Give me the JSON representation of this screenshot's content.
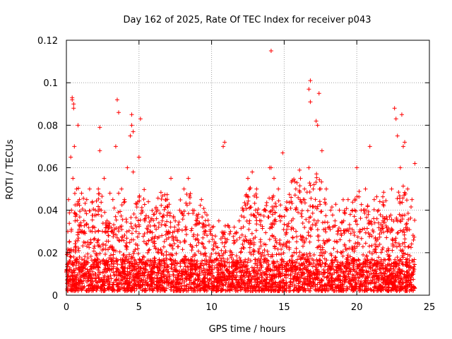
{
  "chart_data": {
    "type": "scatter",
    "title": "Day 162 of 2025, Rate Of TEC Index for receiver p043",
    "xlabel": "GPS time / hours",
    "ylabel": "ROTI / TECUs",
    "xlim": [
      0,
      25
    ],
    "ylim": [
      0,
      0.12
    ],
    "x_ticks": [
      0,
      5,
      10,
      15,
      20,
      25
    ],
    "y_ticks": [
      0,
      0.02,
      0.04,
      0.06,
      0.08,
      0.1,
      0.12
    ],
    "x_tick_labels": [
      "0",
      "5",
      "10",
      "15",
      "20",
      "25"
    ],
    "y_tick_labels": [
      "0",
      "0.02",
      "0.04",
      "0.06",
      "0.08",
      "0.1",
      "0.12"
    ],
    "grid": true,
    "marker": "plus",
    "series_color": "#ff0000",
    "x": [
      0.05,
      0.1,
      0.15,
      0.2,
      0.3,
      0.35,
      0.4,
      0.45,
      0.5,
      0.55,
      0.6,
      0.7,
      0.8,
      0.9,
      1.0,
      1.2,
      1.4,
      1.6,
      1.8,
      2.0,
      2.2,
      2.3,
      2.4,
      2.6,
      2.8,
      3.0,
      3.2,
      3.4,
      3.5,
      3.6,
      3.8,
      4.0,
      4.2,
      4.4,
      4.5,
      4.6,
      4.8,
      5.0,
      5.2,
      5.4,
      5.6,
      5.8,
      6.0,
      6.3,
      6.6,
      6.9,
      7.2,
      7.5,
      7.8,
      8.1,
      8.4,
      8.7,
      9.0,
      9.3,
      9.6,
      9.9,
      10.2,
      10.5,
      10.8,
      11.0,
      11.3,
      11.6,
      11.9,
      12.2,
      12.5,
      12.8,
      13.1,
      13.4,
      13.7,
      14.0,
      14.1,
      14.3,
      14.6,
      14.9,
      15.2,
      15.5,
      15.8,
      16.1,
      16.4,
      16.7,
      16.8,
      17.0,
      17.2,
      17.4,
      17.6,
      17.9,
      18.2,
      18.5,
      18.8,
      19.1,
      19.4,
      19.7,
      20.0,
      20.3,
      20.6,
      20.9,
      21.2,
      21.5,
      21.8,
      22.1,
      22.4,
      22.6,
      22.8,
      23.0,
      23.2,
      23.5,
      23.8,
      24.0,
      0.4,
      0.5,
      2.3,
      3.6,
      4.5,
      4.6,
      5.1,
      10.9,
      14.1,
      16.7,
      16.8,
      17.3,
      22.7,
      23.1,
      23.3
    ],
    "y": [
      0.012,
      0.03,
      0.045,
      0.02,
      0.065,
      0.04,
      0.092,
      0.055,
      0.088,
      0.07,
      0.035,
      0.05,
      0.08,
      0.045,
      0.03,
      0.025,
      0.045,
      0.05,
      0.032,
      0.04,
      0.05,
      0.068,
      0.04,
      0.055,
      0.035,
      0.048,
      0.045,
      0.07,
      0.092,
      0.048,
      0.05,
      0.045,
      0.06,
      0.075,
      0.085,
      0.058,
      0.03,
      0.065,
      0.04,
      0.035,
      0.02,
      0.03,
      0.038,
      0.04,
      0.035,
      0.03,
      0.055,
      0.035,
      0.04,
      0.05,
      0.055,
      0.04,
      0.035,
      0.045,
      0.03,
      0.03,
      0.025,
      0.035,
      0.07,
      0.025,
      0.03,
      0.025,
      0.035,
      0.04,
      0.055,
      0.058,
      0.05,
      0.035,
      0.04,
      0.06,
      0.115,
      0.055,
      0.05,
      0.067,
      0.04,
      0.035,
      0.05,
      0.045,
      0.05,
      0.06,
      0.101,
      0.05,
      0.082,
      0.095,
      0.068,
      0.05,
      0.04,
      0.035,
      0.04,
      0.035,
      0.045,
      0.04,
      0.06,
      0.04,
      0.05,
      0.07,
      0.045,
      0.04,
      0.035,
      0.03,
      0.05,
      0.088,
      0.075,
      0.06,
      0.07,
      0.05,
      0.045,
      0.062,
      0.093,
      0.09,
      0.079,
      0.086,
      0.08,
      0.077,
      0.083,
      0.072,
      0.06,
      0.097,
      0.091,
      0.08,
      0.083,
      0.085,
      0.072
    ]
  }
}
